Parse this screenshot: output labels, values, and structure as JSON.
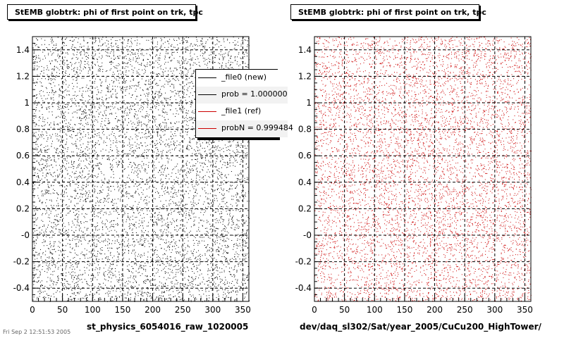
{
  "footer_text": "Fri Sep 2 12:51:53 2005",
  "chart_data": [
    {
      "type": "scatter",
      "title": "StEMB globtrk: phi of first point on trk, tpc",
      "xlabel": "st_physics_6054016_raw_1020005",
      "ylabel": "",
      "xlim": [
        0,
        360
      ],
      "ylim": [
        -0.5,
        1.5
      ],
      "x_ticks": [
        "0",
        "50",
        "100",
        "150",
        "200",
        "250",
        "300",
        "350"
      ],
      "y_ticks": [
        "-0.4",
        "-0.2",
        "-0",
        "0.2",
        "0.4",
        "0.6",
        "0.8",
        "1",
        "1.2",
        "1.4"
      ],
      "grid": true,
      "marker_color": "#000000",
      "distribution": "approximately uniform over x 0-360 and y -0.5-1.5, about 7000 points",
      "legend": {
        "placement": "top-right",
        "entries": [
          {
            "label": "_file0 (new)",
            "color": "#000000"
          },
          {
            "label": "prob = 1.000000",
            "color": "#000000"
          },
          {
            "label": "_file1 (ref)",
            "color": "#cc0000"
          },
          {
            "label": "probN = 0.999484",
            "color": "#cc0000"
          }
        ]
      }
    },
    {
      "type": "scatter",
      "title": "StEMB globtrk: phi of first point on trk, tpc",
      "xlabel": "dev/daq_sl302/Sat/year_2005/CuCu200_HighTower/",
      "ylabel": "",
      "xlim": [
        0,
        360
      ],
      "ylim": [
        -0.5,
        1.5
      ],
      "x_ticks": [
        "0",
        "50",
        "100",
        "150",
        "200",
        "250",
        "300",
        "350"
      ],
      "y_ticks": [
        "-0.4",
        "-0.2",
        "-0",
        "0.2",
        "0.4",
        "0.6",
        "0.8",
        "1",
        "1.2",
        "1.4"
      ],
      "grid": true,
      "marker_color": "#cc0000",
      "distribution": "approximately uniform over x 0-360 and y -0.5-1.5, about 7000 points"
    }
  ]
}
